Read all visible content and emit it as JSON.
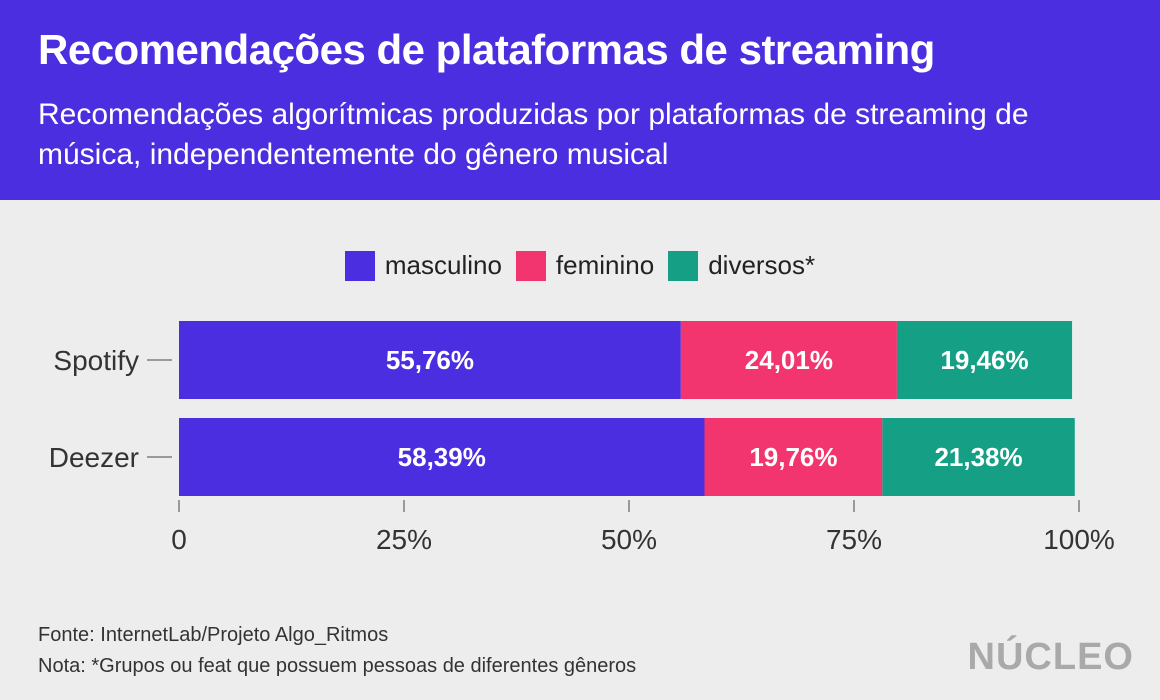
{
  "header": {
    "title": "Recomendações de plataformas de streaming",
    "subtitle": "Recomendações algorítmicas produzidas por plataformas de streaming de música, independentemente do gênero musical"
  },
  "legend": [
    {
      "label": "masculino",
      "color": "#4a2ee0"
    },
    {
      "label": "feminino",
      "color": "#f2356f"
    },
    {
      "label": "diversos*",
      "color": "#15a085"
    }
  ],
  "chart_data": {
    "type": "bar",
    "orientation": "horizontal",
    "stacked": true,
    "categories": [
      "Spotify",
      "Deezer"
    ],
    "series": [
      {
        "name": "masculino",
        "values": [
          55.76,
          58.39
        ],
        "labels": [
          "55,76%",
          "58,39%"
        ],
        "color": "#4a2ee0"
      },
      {
        "name": "feminino",
        "values": [
          24.01,
          19.76
        ],
        "labels": [
          "24,01%",
          "19,76%"
        ],
        "color": "#f2356f"
      },
      {
        "name": "diversos*",
        "values": [
          19.46,
          21.38
        ],
        "labels": [
          "19,46%",
          "21,38%"
        ],
        "color": "#15a085"
      }
    ],
    "xlim": [
      0,
      100
    ],
    "xticks": [
      0,
      25,
      50,
      75,
      100
    ],
    "xtick_labels": [
      "0",
      "25%",
      "50%",
      "75%",
      "100%"
    ],
    "grid": false,
    "legend_position": "top-center"
  },
  "footer": {
    "source": "Fonte: InternetLab/Projeto Algo_Ritmos",
    "note": "Nota: *Grupos ou feat que possuem pessoas de diferentes gêneros"
  },
  "logo": {
    "text": "NÚCLEO"
  }
}
